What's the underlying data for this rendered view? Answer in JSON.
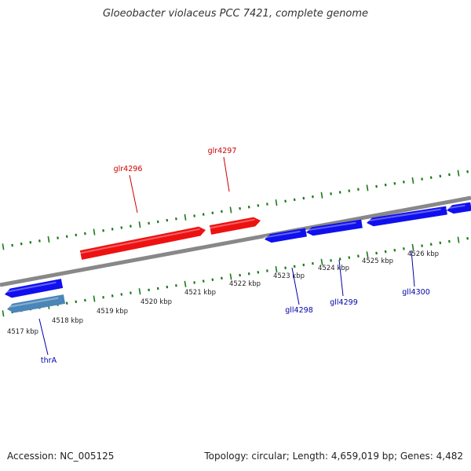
{
  "title": "Gloeobacter violaceus PCC 7421, complete genome",
  "footer": {
    "accession": "Accession: NC_005125",
    "summary": "Topology: circular; Length: 4,659,019 bp; Genes: 4,482"
  },
  "colors": {
    "forward_gene": "#ee1111",
    "reverse_gene": "#1010ee",
    "highlighted_reverse_gene": "#4a86b8",
    "backbone": "#888888",
    "ticks": "#1a7a1a",
    "forward_label": "#cc0000",
    "reverse_label": "#0000aa"
  },
  "kbp_labels": [
    "4517 kbp",
    "4518 kbp",
    "4519 kbp",
    "4520 kbp",
    "4521 kbp",
    "4522 kbp",
    "4523 kbp",
    "4524 kbp",
    "4525 kbp",
    "4526 kbp"
  ],
  "genes": {
    "forward": [
      {
        "name": "glr4296"
      },
      {
        "name": "glr4297"
      }
    ],
    "reverse": [
      {
        "name": "thrA"
      },
      {
        "name": "gll4298"
      },
      {
        "name": "gll4299"
      },
      {
        "name": "gll4300"
      }
    ]
  }
}
